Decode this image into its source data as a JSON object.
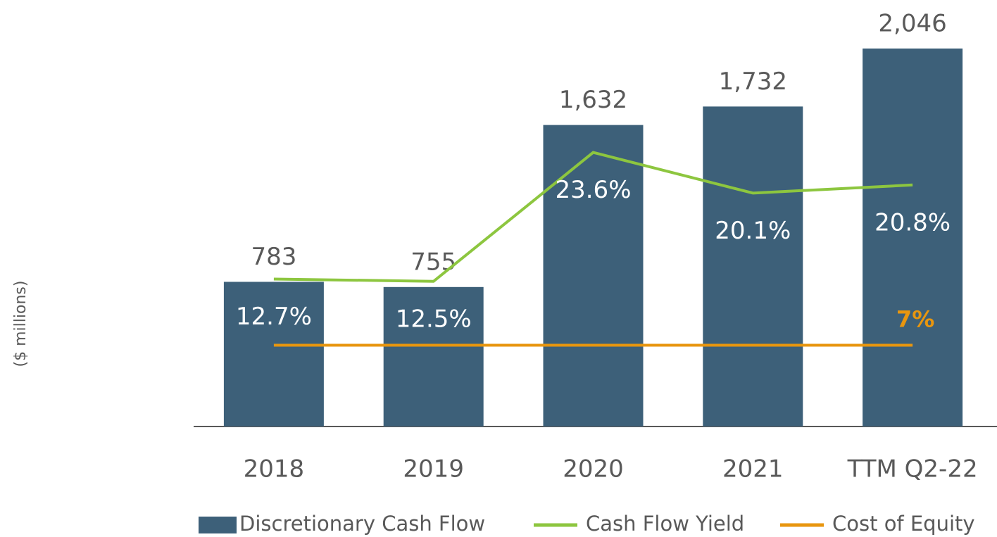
{
  "chart_data": {
    "type": "bar",
    "y_label": "($ millions)",
    "categories": [
      "2018",
      "2019",
      "2020",
      "2021",
      "TTM Q2-22"
    ],
    "ylim": [
      0,
      2200
    ],
    "y2lim": [
      0,
      35
    ],
    "series": [
      {
        "name": "Discretionary Cash Flow",
        "type": "bar",
        "color": "#3d6079",
        "values": [
          783,
          755,
          1632,
          1732,
          2046
        ],
        "value_labels": [
          "783",
          "755",
          "1,632",
          "1,732",
          "2,046"
        ]
      },
      {
        "name": "Cash Flow Yield",
        "type": "line",
        "axis": "y2",
        "color": "#8dc63f",
        "values": [
          12.7,
          12.5,
          23.6,
          20.1,
          20.8
        ],
        "value_labels": [
          "12.7%",
          "12.5%",
          "23.6%",
          "20.1%",
          "20.8%"
        ]
      },
      {
        "name": "Cost of Equity",
        "type": "line",
        "axis": "y2",
        "color": "#e8960f",
        "values": [
          7,
          7,
          7,
          7,
          7
        ],
        "value_labels": [
          null,
          null,
          null,
          null,
          "7%"
        ]
      }
    ]
  }
}
